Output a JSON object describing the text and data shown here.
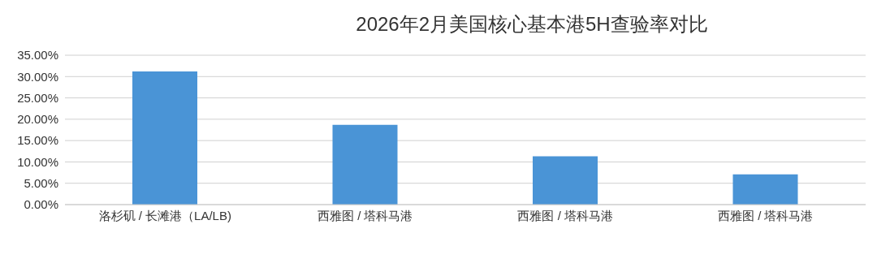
{
  "chart_data": {
    "type": "bar",
    "title": "2026年2月美国核心基本港5H查验率对比",
    "categories": [
      "洛杉矶 / 长滩港（LA/LB)",
      "西雅图 / 塔科马港",
      "西雅图 / 塔科马港",
      "西雅图 / 塔科马港"
    ],
    "series": [
      {
        "color": "#4a94d6",
        "values": [
          31.2,
          18.7,
          11.3,
          7.1
        ]
      }
    ],
    "ylim": [
      0,
      35
    ],
    "yticks": [
      {
        "value": 0,
        "label": "0.00%"
      },
      {
        "value": 5,
        "label": "5.00%"
      },
      {
        "value": 10,
        "label": "10.00%"
      },
      {
        "value": 15,
        "label": "15.00%"
      },
      {
        "value": 20,
        "label": "20.00%"
      },
      {
        "value": 25,
        "label": "25.00%"
      },
      {
        "value": 30,
        "label": "30.00%"
      },
      {
        "value": 35,
        "label": "35.00%"
      }
    ],
    "grid": "y",
    "legend": false
  }
}
